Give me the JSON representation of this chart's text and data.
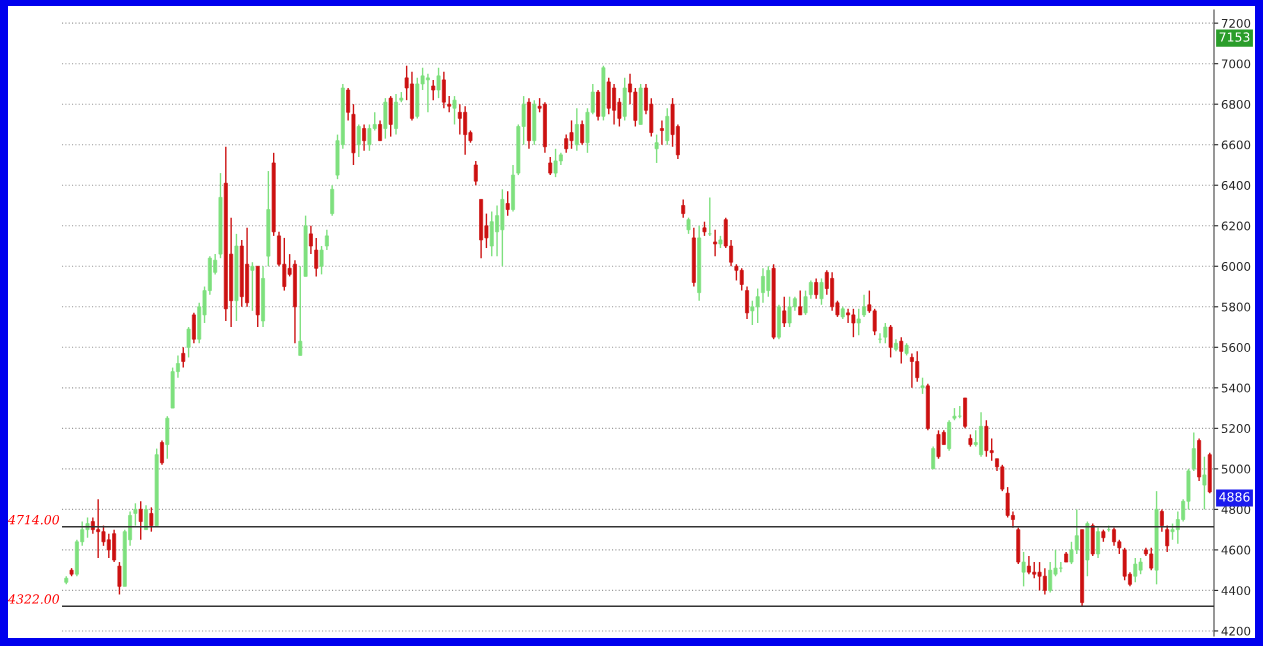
{
  "chart_data": {
    "type": "candlestick",
    "colors": [
      "#7ee07e",
      "#cc1111",
      "#7ee07e",
      "#7ee07e",
      "#7ee07e",
      "#cc1111",
      "#cc1111",
      "#cc1111",
      "#cc1111",
      "#cc1111",
      "#cc1111",
      "#7ee07e",
      "#7ee07e",
      "#7ee07e",
      "#cc1111",
      "#7ee07e",
      "#cc1111",
      "#7ee07e",
      "#cc1111",
      "#7ee07e",
      "#7ee07e",
      "#7ee07e",
      "#cc1111",
      "#7ee07e",
      "#cc1111",
      "#7ee07e",
      "#7ee07e",
      "#7ee07e",
      "#7ee07e",
      "#7ee07e",
      "#cc1111",
      "#cc1111",
      "#7ee07e",
      "#cc1111",
      "#cc1111",
      "#7ee07e",
      "#cc1111",
      "#7ee07e",
      "#7ee07e",
      "#cc1111",
      "#cc1111",
      "#cc1111",
      "#cc1111",
      "#cc1111",
      "#7ee07e",
      "#7ee07e",
      "#cc1111",
      "#cc1111",
      "#7ee07e",
      "#7ee07e",
      "#7ee07e",
      "#7ee07e",
      "#7ee07e",
      "#cc1111",
      "#cc1111",
      "#7ee07e",
      "#cc1111",
      "#7ee07e",
      "#7ee07e",
      "#cc1111",
      "#7ee07e",
      "#cc1111",
      "#7ee07e",
      "#7ee07e",
      "#cc1111",
      "#cc1111",
      "#7ee07e",
      "#7ee07e",
      "#7ee07e",
      "#cc1111",
      "#7ee07e",
      "#cc1111",
      "#cc1111",
      "#7ee07e",
      "#cc1111",
      "#cc1111",
      "#cc1111",
      "#cc1111",
      "#cc1111",
      "#cc1111",
      "#7ee07e",
      "#7ee07e",
      "#7ee07e",
      "#cc1111",
      "#7ee07e",
      "#7ee07e",
      "#7ee07e",
      "#cc1111",
      "#7ee07e",
      "#cc1111",
      "#cc1111",
      "#cc1111",
      "#7ee07e",
      "#7ee07e",
      "#cc1111",
      "#cc1111",
      "#7ee07e",
      "#cc1111",
      "#7ee07e",
      "#7ee07e",
      "#cc1111",
      "#7ee07e",
      "#cc1111",
      "#cc1111",
      "#cc1111",
      "#7ee07e",
      "#cc1111",
      "#cc1111",
      "#7ee07e",
      "#cc1111",
      "#cc1111",
      "#7ee07e",
      "#cc1111",
      "#7ee07e",
      "#cc1111",
      "#cc1111",
      "#cc1111",
      "#7ee07e",
      "#cc1111",
      "#7ee07e",
      "#cc1111",
      "#7ee07e",
      "#cc1111",
      "#7ee07e",
      "#cc1111",
      "#cc1111",
      "#cc1111",
      "#cc1111",
      "#cc1111",
      "#7ee07e",
      "#7ee07e",
      "#7ee07e",
      "#7ee07e",
      "#cc1111",
      "#7ee07e",
      "#cc1111",
      "#7ee07e",
      "#7ee07e",
      "#cc1111",
      "#7ee07e",
      "#7ee07e",
      "#cc1111",
      "#7ee07e",
      "#cc1111",
      "#cc1111",
      "#cc1111",
      "#7ee07e",
      "#cc1111",
      "#cc1111",
      "#7ee07e",
      "#7ee07e",
      "#cc1111",
      "#cc1111",
      "#7ee07e",
      "#7ee07e",
      "#cc1111",
      "#7ee07e",
      "#cc1111",
      "#7ee07e",
      "#cc1111",
      "#cc1111",
      "#7ee07e",
      "#cc1111",
      "#7ee07e",
      "#cc1111",
      "#cc1111",
      "#7ee07e",
      "#7ee07e",
      "#7ee07e",
      "#cc1111",
      "#cc1111",
      "#7ee07e",
      "#7ee07e",
      "#cc1111",
      "#cc1111",
      "#cc1111",
      "#cc1111",
      "#cc1111",
      "#cc1111",
      "#cc1111",
      "#7ee07e",
      "#cc1111",
      "#cc1111",
      "#cc1111",
      "#cc1111",
      "#7ee07e",
      "#7ee07e",
      "#7ee07e",
      "#cc1111",
      "#7ee07e",
      "#7ee07e",
      "#cc1111",
      "#7ee07e",
      "#cc1111",
      "#7ee07e",
      "#cc1111",
      "#7ee07e",
      "#cc1111",
      "#cc1111",
      "#cc1111",
      "#cc1111",
      "#7ee07e",
      "#7ee07e",
      "#cc1111",
      "#cc1111",
      "#7ee07e",
      "#cc1111",
      "#cc1111",
      "#7ee07e",
      "#7ee07e",
      "#7ee07e",
      "#7ee07e",
      "#7ee07e",
      "#cc1111",
      "#7ee07e",
      "#cc1111"
    ],
    "ylim": [
      4175,
      7265
    ],
    "yticks": [
      4200,
      4400,
      4600,
      4800,
      5000,
      5200,
      5400,
      5600,
      5800,
      6000,
      6200,
      6400,
      6600,
      6800,
      7000,
      7200
    ],
    "grid": "y",
    "ref_lines": [
      {
        "axis": "y",
        "value": 4714,
        "label": "4714.00",
        "color": "#333333"
      },
      {
        "axis": "y",
        "value": 4322,
        "label": "4322.00",
        "color": "#333333"
      }
    ],
    "annotations": [
      "7153",
      "4886"
    ],
    "ohlc": [
      [
        4440,
        4470,
        4430,
        4460
      ],
      [
        4500,
        4510,
        4470,
        4480
      ],
      [
        4480,
        4650,
        4470,
        4640
      ],
      [
        4640,
        4740,
        4620,
        4700
      ],
      [
        4700,
        4760,
        4660,
        4730
      ],
      [
        4740,
        4760,
        4680,
        4700
      ],
      [
        4700,
        4850,
        4560,
        4690
      ],
      [
        4690,
        4720,
        4620,
        4640
      ],
      [
        4650,
        4680,
        4560,
        4600
      ],
      [
        4680,
        4700,
        4540,
        4550
      ],
      [
        4520,
        4540,
        4380,
        4420
      ],
      [
        4420,
        4700,
        4420,
        4690
      ],
      [
        4650,
        4790,
        4620,
        4770
      ],
      [
        4780,
        4830,
        4720,
        4800
      ],
      [
        4800,
        4840,
        4650,
        4740
      ],
      [
        4700,
        4820,
        4700,
        4800
      ],
      [
        4780,
        4810,
        4690,
        4720
      ],
      [
        4720,
        5100,
        4720,
        5070
      ],
      [
        5130,
        5140,
        5020,
        5030
      ],
      [
        5120,
        5260,
        5050,
        5250
      ],
      [
        5300,
        5500,
        5300,
        5480
      ],
      [
        5480,
        5560,
        5450,
        5520
      ],
      [
        5570,
        5600,
        5500,
        5530
      ],
      [
        5600,
        5700,
        5550,
        5690
      ],
      [
        5760,
        5770,
        5620,
        5640
      ],
      [
        5640,
        5820,
        5620,
        5800
      ],
      [
        5760,
        5900,
        5720,
        5880
      ],
      [
        5880,
        6050,
        5860,
        6040
      ],
      [
        5970,
        6060,
        5960,
        6030
      ],
      [
        6060,
        6460,
        6040,
        6340
      ],
      [
        6410,
        6590,
        5730,
        5790
      ],
      [
        6060,
        6240,
        5700,
        5830
      ],
      [
        5830,
        6160,
        5730,
        6100
      ],
      [
        6100,
        6130,
        5800,
        5850
      ],
      [
        6010,
        6190,
        5800,
        5820
      ],
      [
        5980,
        6020,
        5780,
        6000
      ],
      [
        6000,
        6000,
        5700,
        5760
      ],
      [
        5730,
        6000,
        5700,
        5940
      ],
      [
        6050,
        6470,
        6000,
        6280
      ],
      [
        6510,
        6560,
        6150,
        6170
      ],
      [
        6150,
        6170,
        6000,
        6010
      ],
      [
        6010,
        6140,
        5880,
        5900
      ],
      [
        5990,
        6060,
        5950,
        5960
      ],
      [
        6010,
        6030,
        5620,
        5800
      ],
      [
        5560,
        6000,
        5560,
        5630
      ],
      [
        5950,
        6250,
        5950,
        6200
      ],
      [
        6160,
        6200,
        6060,
        6100
      ],
      [
        6080,
        6140,
        5950,
        5990
      ],
      [
        6000,
        6100,
        5960,
        6080
      ],
      [
        6100,
        6180,
        6080,
        6150
      ],
      [
        6260,
        6400,
        6250,
        6380
      ],
      [
        6450,
        6650,
        6430,
        6620
      ],
      [
        6600,
        6900,
        6580,
        6880
      ],
      [
        6870,
        6880,
        6720,
        6760
      ],
      [
        6750,
        6800,
        6500,
        6560
      ],
      [
        6600,
        6700,
        6540,
        6690
      ],
      [
        6680,
        6700,
        6570,
        6620
      ],
      [
        6600,
        6700,
        6570,
        6680
      ],
      [
        6680,
        6760,
        6670,
        6700
      ],
      [
        6700,
        6720,
        6620,
        6620
      ],
      [
        6680,
        6830,
        6630,
        6810
      ],
      [
        6830,
        6840,
        6640,
        6700
      ],
      [
        6680,
        6850,
        6650,
        6810
      ],
      [
        6820,
        6860,
        6810,
        6830
      ],
      [
        6930,
        6990,
        6820,
        6880
      ],
      [
        6900,
        6960,
        6720,
        6730
      ],
      [
        6740,
        6930,
        6730,
        6900
      ],
      [
        6900,
        6980,
        6870,
        6940
      ],
      [
        6930,
        6950,
        6760,
        6920
      ],
      [
        6890,
        6920,
        6820,
        6870
      ],
      [
        6870,
        6980,
        6830,
        6940
      ],
      [
        6920,
        6960,
        6780,
        6810
      ],
      [
        6790,
        6840,
        6760,
        6800
      ],
      [
        6780,
        6840,
        6700,
        6820
      ],
      [
        6760,
        6800,
        6650,
        6730
      ],
      [
        6760,
        6790,
        6550,
        6650
      ],
      [
        6660,
        6670,
        6610,
        6620
      ],
      [
        6500,
        6520,
        6400,
        6420
      ],
      [
        6330,
        6330,
        6040,
        6130
      ],
      [
        6200,
        6260,
        6090,
        6140
      ],
      [
        6100,
        6270,
        6050,
        6220
      ],
      [
        6170,
        6300,
        6050,
        6250
      ],
      [
        6180,
        6380,
        6000,
        6330
      ],
      [
        6310,
        6370,
        6250,
        6280
      ],
      [
        6280,
        6500,
        6270,
        6450
      ],
      [
        6460,
        6700,
        6450,
        6690
      ],
      [
        6690,
        6840,
        6600,
        6800
      ],
      [
        6810,
        6830,
        6580,
        6620
      ],
      [
        6620,
        6820,
        6600,
        6800
      ],
      [
        6780,
        6830,
        6760,
        6790
      ],
      [
        6800,
        6810,
        6560,
        6590
      ],
      [
        6510,
        6540,
        6450,
        6460
      ],
      [
        6460,
        6580,
        6440,
        6520
      ],
      [
        6520,
        6560,
        6500,
        6550
      ],
      [
        6630,
        6650,
        6560,
        6580
      ],
      [
        6660,
        6720,
        6580,
        6620
      ],
      [
        6600,
        6780,
        6570,
        6700
      ],
      [
        6700,
        6720,
        6600,
        6610
      ],
      [
        6610,
        6780,
        6560,
        6760
      ],
      [
        6760,
        6900,
        6750,
        6860
      ],
      [
        6860,
        6870,
        6720,
        6740
      ],
      [
        6740,
        6990,
        6720,
        6980
      ],
      [
        6910,
        6930,
        6750,
        6780
      ],
      [
        6880,
        6900,
        6700,
        6770
      ],
      [
        6810,
        6830,
        6690,
        6730
      ],
      [
        6740,
        6930,
        6720,
        6880
      ],
      [
        6900,
        6950,
        6800,
        6860
      ],
      [
        6860,
        6880,
        6690,
        6720
      ],
      [
        6700,
        6900,
        6700,
        6880
      ],
      [
        6880,
        6900,
        6750,
        6770
      ],
      [
        6800,
        6830,
        6640,
        6660
      ],
      [
        6580,
        6650,
        6510,
        6610
      ],
      [
        6680,
        6720,
        6600,
        6670
      ],
      [
        6620,
        6780,
        6600,
        6740
      ],
      [
        6800,
        6830,
        6590,
        6650
      ],
      [
        6690,
        6700,
        6530,
        6550
      ],
      [
        6300,
        6330,
        6240,
        6260
      ],
      [
        6180,
        6240,
        6160,
        6230
      ],
      [
        6140,
        6190,
        5900,
        5920
      ],
      [
        5870,
        6200,
        5830,
        6140
      ],
      [
        6190,
        6220,
        6150,
        6170
      ],
      [
        6160,
        6340,
        6150,
        6160
      ],
      [
        6120,
        6180,
        6050,
        6110
      ],
      [
        6110,
        6150,
        6090,
        6130
      ],
      [
        6230,
        6240,
        6090,
        6100
      ],
      [
        6100,
        6130,
        6000,
        6020
      ],
      [
        6000,
        6010,
        5930,
        5980
      ],
      [
        5980,
        5990,
        5880,
        5910
      ],
      [
        5880,
        5900,
        5740,
        5770
      ],
      [
        5780,
        5830,
        5710,
        5800
      ],
      [
        5800,
        5890,
        5720,
        5850
      ],
      [
        5870,
        5990,
        5820,
        5950
      ],
      [
        5880,
        6000,
        5850,
        5980
      ],
      [
        5990,
        6010,
        5640,
        5650
      ],
      [
        5650,
        5810,
        5640,
        5800
      ],
      [
        5780,
        5850,
        5700,
        5720
      ],
      [
        5720,
        5850,
        5700,
        5800
      ],
      [
        5800,
        5850,
        5780,
        5840
      ],
      [
        5800,
        5880,
        5760,
        5760
      ],
      [
        5770,
        5880,
        5760,
        5850
      ],
      [
        5860,
        5930,
        5840,
        5920
      ],
      [
        5920,
        5940,
        5840,
        5860
      ],
      [
        5840,
        5940,
        5810,
        5920
      ],
      [
        5970,
        5980,
        5860,
        5890
      ],
      [
        5940,
        5970,
        5780,
        5800
      ],
      [
        5820,
        5830,
        5750,
        5760
      ],
      [
        5750,
        5800,
        5740,
        5790
      ],
      [
        5770,
        5790,
        5720,
        5760
      ],
      [
        5760,
        5790,
        5650,
        5720
      ],
      [
        5720,
        5790,
        5660,
        5740
      ],
      [
        5760,
        5860,
        5750,
        5800
      ],
      [
        5810,
        5880,
        5770,
        5780
      ],
      [
        5780,
        5790,
        5660,
        5680
      ],
      [
        5640,
        5670,
        5620,
        5640
      ],
      [
        5650,
        5720,
        5620,
        5700
      ],
      [
        5700,
        5710,
        5550,
        5600
      ],
      [
        5590,
        5640,
        5580,
        5620
      ],
      [
        5630,
        5650,
        5520,
        5580
      ],
      [
        5570,
        5620,
        5560,
        5610
      ],
      [
        5550,
        5570,
        5400,
        5530
      ],
      [
        5530,
        5580,
        5430,
        5450
      ],
      [
        5400,
        5450,
        5370,
        5410
      ],
      [
        5410,
        5420,
        5190,
        5200
      ],
      [
        5000,
        5110,
        5000,
        5100
      ],
      [
        5170,
        5190,
        5050,
        5060
      ],
      [
        5180,
        5190,
        5120,
        5120
      ],
      [
        5100,
        5240,
        5090,
        5230
      ],
      [
        5250,
        5300,
        5240,
        5260
      ],
      [
        5260,
        5310,
        5250,
        5260
      ],
      [
        5350,
        5350,
        5200,
        5210
      ],
      [
        5150,
        5170,
        5110,
        5120
      ],
      [
        5120,
        5190,
        5110,
        5130
      ],
      [
        5070,
        5280,
        5060,
        5210
      ],
      [
        5210,
        5240,
        5060,
        5090
      ],
      [
        5090,
        5150,
        5040,
        5080
      ],
      [
        5050,
        5050,
        4990,
        5010
      ],
      [
        5010,
        5020,
        4890,
        4900
      ],
      [
        4880,
        4910,
        4760,
        4770
      ],
      [
        4770,
        4790,
        4710,
        4750
      ],
      [
        4700,
        4710,
        4530,
        4540
      ],
      [
        4490,
        4590,
        4420,
        4540
      ],
      [
        4520,
        4570,
        4480,
        4490
      ],
      [
        4490,
        4540,
        4460,
        4480
      ],
      [
        4490,
        4540,
        4400,
        4470
      ],
      [
        4470,
        4510,
        4380,
        4400
      ],
      [
        4400,
        4540,
        4390,
        4500
      ],
      [
        4480,
        4600,
        4470,
        4510
      ],
      [
        4510,
        4540,
        4490,
        4510
      ],
      [
        4580,
        4590,
        4540,
        4540
      ],
      [
        4540,
        4640,
        4530,
        4600
      ],
      [
        4600,
        4800,
        4580,
        4670
      ],
      [
        4700,
        4700,
        4320,
        4340
      ],
      [
        4550,
        4740,
        4470,
        4730
      ],
      [
        4720,
        4730,
        4570,
        4580
      ],
      [
        4580,
        4710,
        4560,
        4690
      ],
      [
        4690,
        4700,
        4640,
        4660
      ],
      [
        4700,
        4720,
        4690,
        4700
      ],
      [
        4700,
        4710,
        4620,
        4640
      ],
      [
        4640,
        4650,
        4580,
        4610
      ],
      [
        4600,
        4610,
        4450,
        4470
      ],
      [
        4480,
        4490,
        4420,
        4430
      ],
      [
        4470,
        4560,
        4440,
        4530
      ],
      [
        4500,
        4560,
        4480,
        4540
      ],
      [
        4600,
        4610,
        4570,
        4580
      ],
      [
        4580,
        4610,
        4500,
        4510
      ],
      [
        4500,
        4890,
        4430,
        4800
      ],
      [
        4790,
        4800,
        4690,
        4720
      ],
      [
        4700,
        4720,
        4590,
        4620
      ],
      [
        4690,
        4730,
        4650,
        4700
      ],
      [
        4700,
        4790,
        4630,
        4750
      ],
      [
        4750,
        4850,
        4740,
        4840
      ],
      [
        4840,
        5000,
        4800,
        4990
      ],
      [
        5000,
        5180,
        4990,
        5100
      ],
      [
        5140,
        5150,
        4940,
        4960
      ],
      [
        4920,
        5060,
        4800,
        4970
      ],
      [
        5070,
        5080,
        4880,
        4886
      ]
    ]
  }
}
